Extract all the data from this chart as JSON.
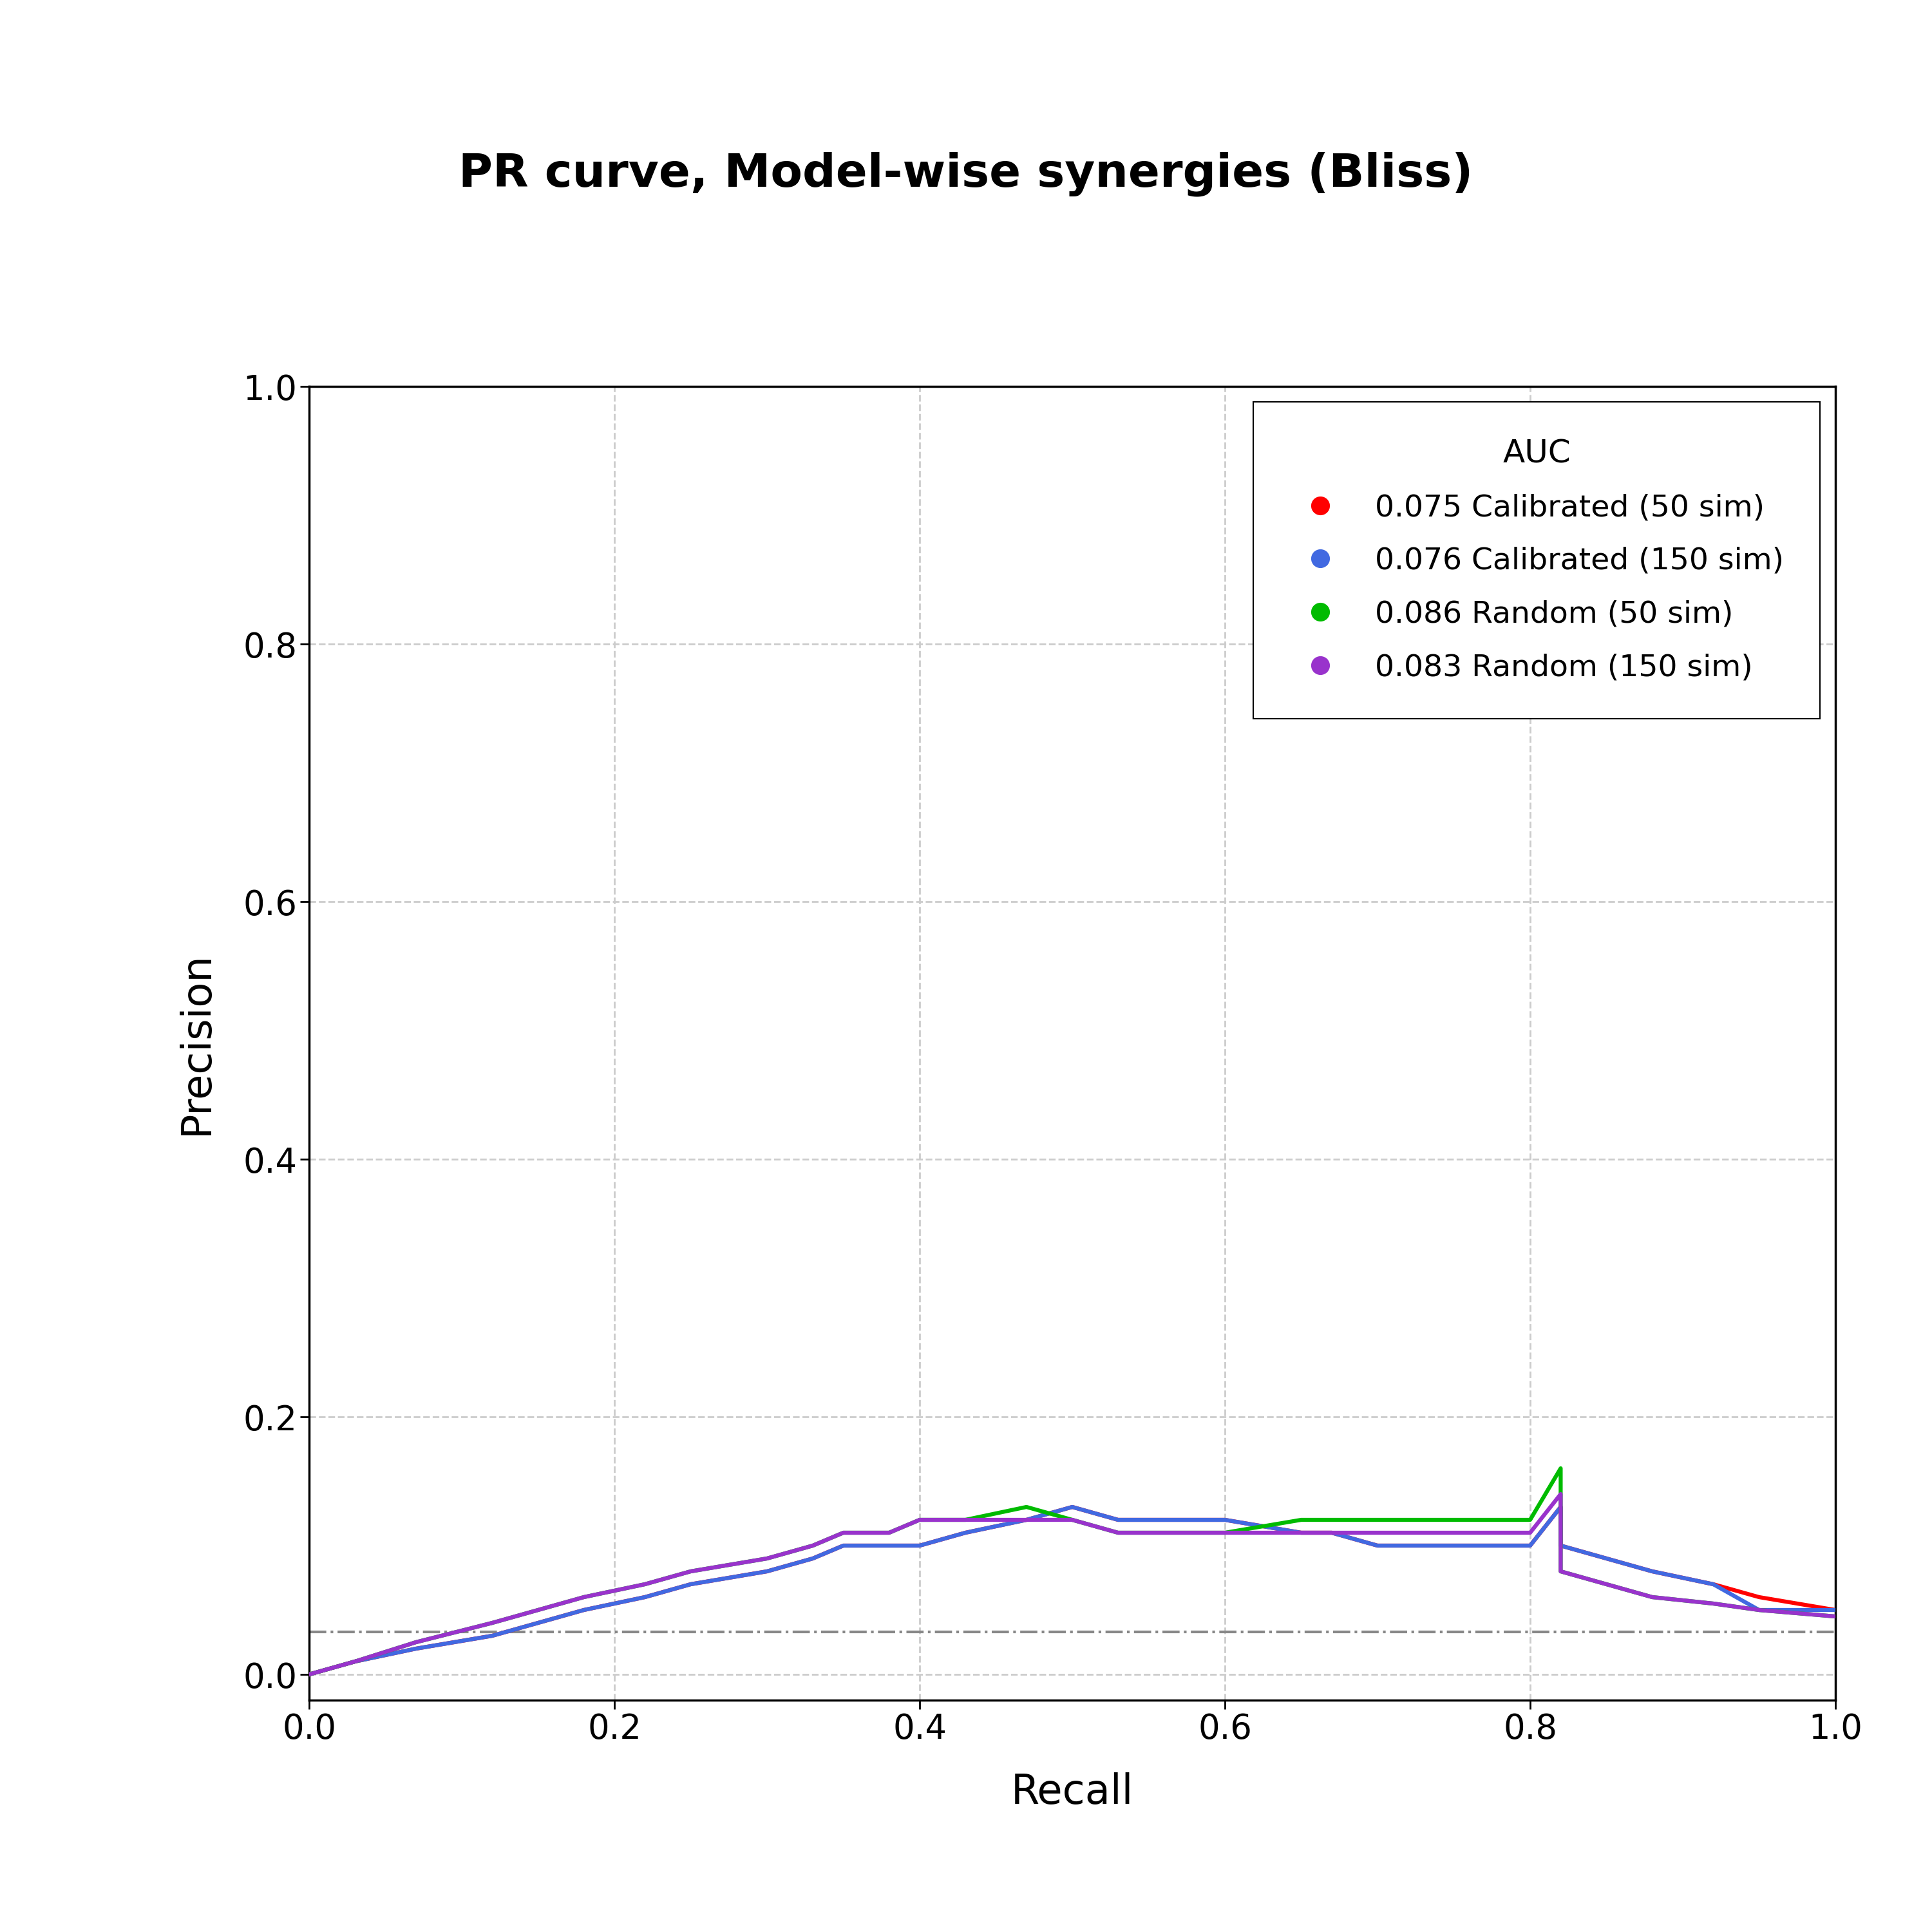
{
  "title": "PR curve, Model-wise synergies (Bliss)",
  "xlabel": "Recall",
  "ylabel": "Precision",
  "xlim": [
    0.0,
    1.0
  ],
  "ylim": [
    -0.02,
    1.0
  ],
  "xticks": [
    0.0,
    0.2,
    0.4,
    0.6,
    0.8,
    1.0
  ],
  "yticks": [
    0.0,
    0.2,
    0.4,
    0.6,
    0.8,
    1.0
  ],
  "baseline_y": 0.033,
  "curves": [
    {
      "label": "0.075 Calibrated (50 sim)",
      "color": "#FF0000",
      "recall": [
        0.0,
        0.03,
        0.07,
        0.12,
        0.15,
        0.18,
        0.22,
        0.25,
        0.3,
        0.33,
        0.35,
        0.38,
        0.4,
        0.43,
        0.47,
        0.5,
        0.5,
        0.53,
        0.57,
        0.6,
        0.65,
        0.67,
        0.7,
        0.75,
        0.78,
        0.8,
        0.82,
        0.82,
        0.85,
        0.88,
        0.92,
        0.95,
        1.0
      ],
      "precision": [
        0.0,
        0.01,
        0.02,
        0.03,
        0.04,
        0.05,
        0.06,
        0.07,
        0.08,
        0.09,
        0.1,
        0.1,
        0.1,
        0.11,
        0.12,
        0.13,
        0.13,
        0.12,
        0.12,
        0.12,
        0.11,
        0.11,
        0.1,
        0.1,
        0.1,
        0.1,
        0.13,
        0.1,
        0.09,
        0.08,
        0.07,
        0.06,
        0.05
      ]
    },
    {
      "label": "0.076 Calibrated (150 sim)",
      "color": "#4169E1",
      "recall": [
        0.0,
        0.03,
        0.07,
        0.12,
        0.15,
        0.18,
        0.22,
        0.25,
        0.3,
        0.33,
        0.35,
        0.38,
        0.4,
        0.43,
        0.47,
        0.5,
        0.5,
        0.53,
        0.57,
        0.6,
        0.65,
        0.67,
        0.7,
        0.75,
        0.78,
        0.8,
        0.82,
        0.82,
        0.85,
        0.88,
        0.92,
        0.95,
        1.0
      ],
      "precision": [
        0.0,
        0.01,
        0.02,
        0.03,
        0.04,
        0.05,
        0.06,
        0.07,
        0.08,
        0.09,
        0.1,
        0.1,
        0.1,
        0.11,
        0.12,
        0.13,
        0.13,
        0.12,
        0.12,
        0.12,
        0.11,
        0.11,
        0.1,
        0.1,
        0.1,
        0.1,
        0.13,
        0.1,
        0.09,
        0.08,
        0.07,
        0.05,
        0.05
      ]
    },
    {
      "label": "0.086 Random (50 sim)",
      "color": "#00BB00",
      "recall": [
        0.0,
        0.03,
        0.07,
        0.12,
        0.15,
        0.18,
        0.22,
        0.25,
        0.3,
        0.33,
        0.35,
        0.38,
        0.4,
        0.43,
        0.47,
        0.5,
        0.5,
        0.53,
        0.57,
        0.6,
        0.65,
        0.67,
        0.7,
        0.75,
        0.78,
        0.8,
        0.82,
        0.82,
        0.85,
        0.88,
        0.92,
        0.95,
        1.0
      ],
      "precision": [
        0.0,
        0.01,
        0.025,
        0.04,
        0.05,
        0.06,
        0.07,
        0.08,
        0.09,
        0.1,
        0.11,
        0.11,
        0.12,
        0.12,
        0.13,
        0.12,
        0.12,
        0.11,
        0.11,
        0.11,
        0.12,
        0.12,
        0.12,
        0.12,
        0.12,
        0.12,
        0.16,
        0.08,
        0.07,
        0.06,
        0.055,
        0.05,
        0.045
      ]
    },
    {
      "label": "0.083 Random (150 sim)",
      "color": "#9933CC",
      "recall": [
        0.0,
        0.03,
        0.07,
        0.12,
        0.15,
        0.18,
        0.22,
        0.25,
        0.3,
        0.33,
        0.35,
        0.38,
        0.4,
        0.43,
        0.47,
        0.5,
        0.5,
        0.53,
        0.57,
        0.6,
        0.65,
        0.67,
        0.7,
        0.75,
        0.78,
        0.8,
        0.82,
        0.82,
        0.85,
        0.88,
        0.92,
        0.95,
        1.0
      ],
      "precision": [
        0.0,
        0.01,
        0.025,
        0.04,
        0.05,
        0.06,
        0.07,
        0.08,
        0.09,
        0.1,
        0.11,
        0.11,
        0.12,
        0.12,
        0.12,
        0.12,
        0.12,
        0.11,
        0.11,
        0.11,
        0.11,
        0.11,
        0.11,
        0.11,
        0.11,
        0.11,
        0.14,
        0.08,
        0.07,
        0.06,
        0.055,
        0.05,
        0.045
      ]
    }
  ],
  "legend_title": "AUC",
  "background_color": "#FFFFFF",
  "grid_color": "#CCCCCC",
  "title_fontsize": 52,
  "label_fontsize": 46,
  "tick_fontsize": 38,
  "legend_fontsize": 34,
  "legend_title_fontsize": 36,
  "line_width": 4.5,
  "baseline_color": "#888888",
  "baseline_linewidth": 3.0
}
